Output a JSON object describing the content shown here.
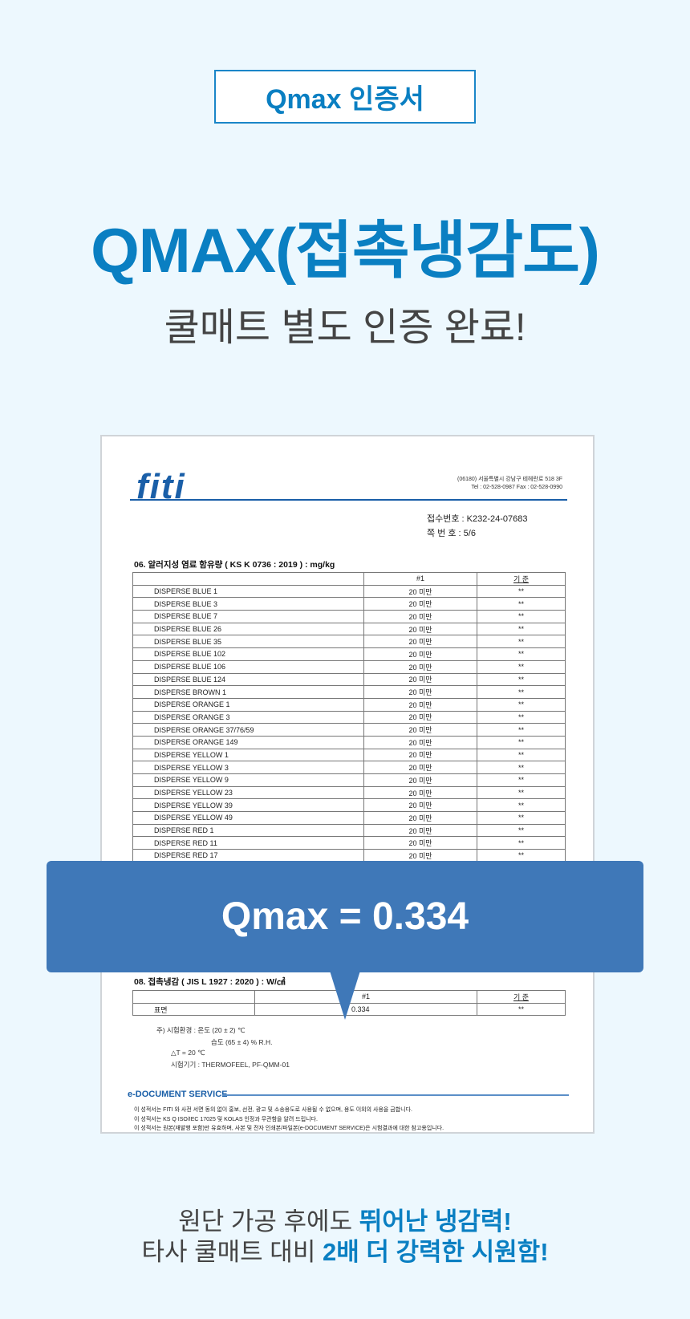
{
  "badge": "Qmax 인증서",
  "title": "QMAX(접촉냉감도)",
  "subtitle": "쿨매트 별도 인증 완료!",
  "doc": {
    "logo": "fiti",
    "address": "(06180) 서울특별시 강남구 테헤란로 518 3F",
    "contact": "Tel : 02-528-0987   Fax : 02-528-0990",
    "receipt_label": "접수번호 :",
    "receipt_no": "K232-24-07683",
    "page_label": "쪽 번 호 :",
    "page_no": "5/6",
    "section6_title": "06. 알러지성 염료 함유량 ( KS K 0736 : 2019 ) : mg/kg",
    "col_sample": "#1",
    "col_std": "기 준",
    "rows": [
      {
        "name": "DISPERSE BLUE 1",
        "value": "20 미만",
        "std": "**"
      },
      {
        "name": "DISPERSE BLUE 3",
        "value": "20 미만",
        "std": "**"
      },
      {
        "name": "DISPERSE BLUE 7",
        "value": "20 미만",
        "std": "**"
      },
      {
        "name": "DISPERSE BLUE 26",
        "value": "20 미만",
        "std": "**"
      },
      {
        "name": "DISPERSE BLUE 35",
        "value": "20 미만",
        "std": "**"
      },
      {
        "name": "DISPERSE BLUE 102",
        "value": "20 미만",
        "std": "**"
      },
      {
        "name": "DISPERSE BLUE 106",
        "value": "20 미만",
        "std": "**"
      },
      {
        "name": "DISPERSE BLUE 124",
        "value": "20 미만",
        "std": "**"
      },
      {
        "name": "DISPERSE BROWN 1",
        "value": "20 미만",
        "std": "**"
      },
      {
        "name": "DISPERSE ORANGE 1",
        "value": "20 미만",
        "std": "**"
      },
      {
        "name": "DISPERSE ORANGE 3",
        "value": "20 미만",
        "std": "**"
      },
      {
        "name": "DISPERSE ORANGE 37/76/59",
        "value": "20 미만",
        "std": "**"
      },
      {
        "name": "DISPERSE ORANGE 149",
        "value": "20 미만",
        "std": "**"
      },
      {
        "name": "DISPERSE YELLOW 1",
        "value": "20 미만",
        "std": "**"
      },
      {
        "name": "DISPERSE YELLOW 3",
        "value": "20 미만",
        "std": "**"
      },
      {
        "name": "DISPERSE YELLOW 9",
        "value": "20 미만",
        "std": "**"
      },
      {
        "name": "DISPERSE YELLOW 23",
        "value": "20 미만",
        "std": "**"
      },
      {
        "name": "DISPERSE YELLOW 39",
        "value": "20 미만",
        "std": "**"
      },
      {
        "name": "DISPERSE YELLOW 49",
        "value": "20 미만",
        "std": "**"
      },
      {
        "name": "DISPERSE RED 1",
        "value": "20 미만",
        "std": "**"
      },
      {
        "name": "DISPERSE RED 11",
        "value": "20 미만",
        "std": "**"
      },
      {
        "name": "DISPERSE RED 17",
        "value": "20 미만",
        "std": "**"
      }
    ],
    "section8_title": "08. 접촉냉감 ( JIS L 1927 : 2020 ) : W/㎠",
    "s8_row_name": "표면",
    "s8_row_value": "0.334",
    "s8_row_std": "**",
    "note1": "주) 시험환경 : 온도 (20 ± 2) ℃",
    "note2": "습도 (65 ± 4) % R.H.",
    "note3": "△T = 20 ℃",
    "note4": "시험기기  : THERMOFEEL, PF-QMM-01",
    "edoc": "e-DOCUMENT SERVICE",
    "foot1": "이 성적서는 FITI 와 사전 서면 동의 없이 홍보, 선전, 광고 및 소송용도로 사용될 수 없으며, 용도 이외의 사용을 금합니다.",
    "foot2": "이 성적서는 KS Q ISO/IEC 17025 및 KOLAS 인정과 무관함을 알려 드립니다.",
    "foot3": "이 성적서는 원본(재발행 포함)만 유효하며, 사본 및 전자 인쇄본/파일본(e-DOCUMENT SERVICE)은 시험결과에 대한 참고용입니다."
  },
  "callout": "Qmax = 0.334",
  "bottom": {
    "line1_plain": "원단 가공 후에도 ",
    "line1_bold": "뛰어난 냉감력!",
    "line2_plain": "타사 쿨매트 대비 ",
    "line2_bold": "2배 더 강력한 시원함!"
  },
  "colors": {
    "accent": "#0a7fc2",
    "callout": "#3f78b8",
    "background": "#edf8fe"
  }
}
